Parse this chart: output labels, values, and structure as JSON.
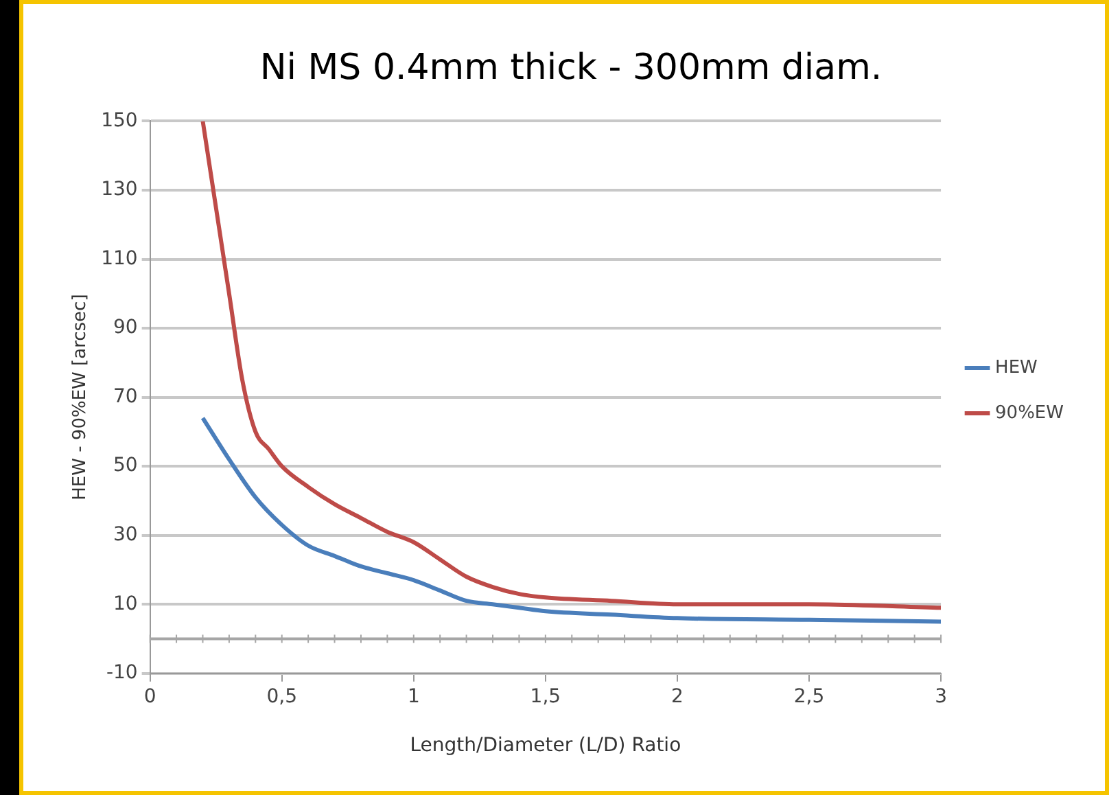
{
  "chart_data": {
    "type": "line",
    "title": "Ni MS 0.4mm thick - 300mm diam.",
    "xlabel": "Length/Diameter (L/D) Ratio",
    "ylabel": "HEW - 90%EW [arcsec]",
    "series": [
      {
        "name": "HEW",
        "color": "#4a7ebb",
        "x": [
          0.2,
          0.3,
          0.4,
          0.5,
          0.6,
          0.7,
          0.8,
          0.9,
          1.0,
          1.1,
          1.2,
          1.3,
          1.4,
          1.5,
          1.75,
          2,
          2.5,
          3
        ],
        "values": [
          64,
          52,
          41,
          33,
          27,
          24,
          21,
          19,
          17,
          14,
          11,
          10,
          9,
          8,
          7,
          6,
          5.5,
          5
        ]
      },
      {
        "name": "90%EW",
        "color": "#be4b48",
        "x": [
          0.2,
          0.25,
          0.3,
          0.35,
          0.4,
          0.45,
          0.5,
          0.6,
          0.7,
          0.8,
          0.9,
          1.0,
          1.1,
          1.2,
          1.3,
          1.4,
          1.5,
          1.75,
          2,
          2.5,
          3
        ],
        "values": [
          150,
          125,
          100,
          75,
          60,
          55,
          50,
          44,
          39,
          35,
          31,
          28,
          23,
          18,
          15,
          13,
          12,
          11,
          10,
          10,
          9
        ]
      }
    ],
    "xlim": [
      0,
      3
    ],
    "xticks": [
      0,
      {
        "value": 0.5,
        "label": "0,5"
      },
      1,
      {
        "value": 1.5,
        "label": "1,5"
      },
      2,
      {
        "value": 2.5,
        "label": "2,5"
      },
      3
    ],
    "ylim": [
      -10,
      150
    ],
    "yticks": [
      -10,
      10,
      30,
      50,
      70,
      90,
      110,
      130,
      150
    ],
    "ref_lines": [
      {
        "axis": "y",
        "value": 0,
        "color": "#a6a6a6"
      }
    ],
    "grid": "y",
    "legend": "right",
    "marker": "none",
    "line_style": "solid"
  }
}
